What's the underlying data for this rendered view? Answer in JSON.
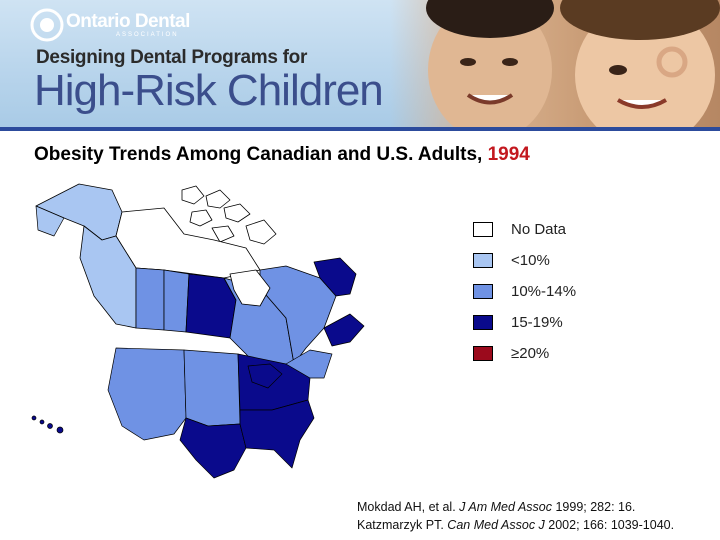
{
  "banner": {
    "logo_text": "Ontario Dental",
    "logo_sub": "ASSOCIATION",
    "subtitle": "Designing Dental Programs for",
    "title": "High-Risk Children"
  },
  "heading": {
    "text": "Obesity Trends Among Canadian and U.S. Adults,",
    "year": "1994"
  },
  "legend": {
    "items": [
      {
        "label": "No Data",
        "color": "#ffffff"
      },
      {
        "label": "<10%",
        "color": "#a9c6f2"
      },
      {
        "label": "10%-14%",
        "color": "#6f92e4"
      },
      {
        "label": "15-19%",
        "color": "#0a0a8c"
      },
      {
        "label": "≥20%",
        "color": "#9b0a1c"
      }
    ]
  },
  "map_data": {
    "canada": [
      {
        "region": "Yukon",
        "category": "<10%"
      },
      {
        "region": "Northwest Territories",
        "category": "No Data"
      },
      {
        "region": "Nunavut",
        "category": "No Data"
      },
      {
        "region": "British Columbia",
        "category": "<10%"
      },
      {
        "region": "Alberta",
        "category": "10%-14%"
      },
      {
        "region": "Saskatchewan",
        "category": "10%-14%"
      },
      {
        "region": "Manitoba",
        "category": "15-19%"
      },
      {
        "region": "Ontario",
        "category": "10%-14%"
      },
      {
        "region": "Quebec",
        "category": "10%-14%"
      },
      {
        "region": "Newfoundland and Labrador",
        "category": "15-19%"
      },
      {
        "region": "Maritimes",
        "category": "15-19%"
      }
    ]
  },
  "citation": {
    "line1_pre": "Mokdad AH, et al. ",
    "line1_journal": "J Am Med Assoc",
    "line1_post": " 1999; 282: 16.",
    "line2_pre": "Katzmarzyk PT. ",
    "line2_journal": "Can Med Assoc J",
    "line2_post": " 2002; 166: 1039-1040."
  }
}
